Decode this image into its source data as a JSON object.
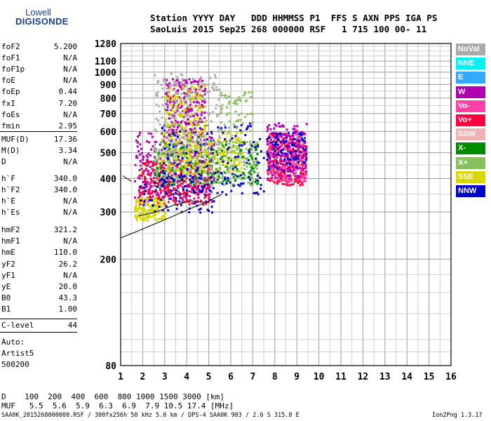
{
  "logo": {
    "line1": "Lowell",
    "line2": "DIGISONDE"
  },
  "header": {
    "line1": "Station YYYY DAY   DDD HHMMSS P1  FFS S AXN PPS IGA PS",
    "line2": "SaoLuis 2015 Sep25 268 000000 RSF   1 715 100 00- 11"
  },
  "params": [
    {
      "k": "foF2",
      "v": "5.200"
    },
    {
      "k": "foF1",
      "v": "N/A"
    },
    {
      "k": "foF1p",
      "v": "N/A"
    },
    {
      "k": "foE",
      "v": "N/A"
    },
    {
      "k": "foEp",
      "v": "0.44"
    },
    {
      "k": "fxI",
      "v": "7.20"
    },
    {
      "k": "foEs",
      "v": "N/A"
    },
    {
      "k": "fmin",
      "v": "2.95"
    },
    {
      "k": "MUF(D)",
      "v": "17.36"
    },
    {
      "k": "M(D)",
      "v": "3.34"
    },
    {
      "k": "D",
      "v": "N/A"
    },
    {
      "k": "h`F",
      "v": "340.0"
    },
    {
      "k": "h`F2",
      "v": "340.0"
    },
    {
      "k": "h`E",
      "v": "N/A"
    },
    {
      "k": "h`Es",
      "v": "N/A"
    },
    {
      "k": "hmF2",
      "v": "321.2"
    },
    {
      "k": "hmF1",
      "v": "N/A"
    },
    {
      "k": "hmE",
      "v": "110.0"
    },
    {
      "k": "yF2",
      "v": "26.2"
    },
    {
      "k": "yF1",
      "v": "N/A"
    },
    {
      "k": "yE",
      "v": "20.0"
    },
    {
      "k": "B0",
      "v": "43.3"
    },
    {
      "k": "B1",
      "v": "1.00"
    }
  ],
  "clevel": {
    "k": "C-level",
    "v": "44"
  },
  "auto": [
    "Auto:",
    "Artist5",
    "500200"
  ],
  "bottom_table": {
    "d_row": "D    100  200  400  600  800 1000 1500 3000 [km]",
    "muf_row": "MUF   5.5  5.6  5.9  6.3  6.9  7.9 10.5 17.4 [MHz]"
  },
  "footer": {
    "left": "SAA0K_2015268000000.RSF / 300fx256h 50 kHz 5.0 km / DPS-4 SAA0K 903 / 2.6 S 315.8 E",
    "right": "Ion2Png 1.3.17"
  },
  "legend": [
    {
      "label": "NoVal",
      "color": "#aaaaaa"
    },
    {
      "label": "NNE",
      "color": "#00f2f2"
    },
    {
      "label": "E",
      "color": "#33aaff"
    },
    {
      "label": "W",
      "color": "#b000b0"
    },
    {
      "label": "Vo-",
      "color": "#ff3fa8"
    },
    {
      "label": "Vo+",
      "color": "#ff0040"
    },
    {
      "label": "SSW",
      "color": "#f2b0b0"
    },
    {
      "label": "X-",
      "color": "#008a00"
    },
    {
      "label": "X+",
      "color": "#88c060"
    },
    {
      "label": "SSE",
      "color": "#d8d800"
    },
    {
      "label": "NNW",
      "color": "#0000c8"
    }
  ],
  "chart_data": {
    "type": "scatter",
    "title": "",
    "xlabel": "",
    "ylabel": "",
    "xlim": [
      1,
      16
    ],
    "ylim": [
      80,
      1280
    ],
    "x_ticks": [
      1,
      2,
      3,
      4,
      5,
      6,
      7,
      8,
      9,
      10,
      11,
      12,
      13,
      14,
      15,
      16
    ],
    "y_ticks": [
      80,
      200,
      300,
      400,
      500,
      600,
      700,
      800,
      900,
      1000,
      1100,
      1280
    ],
    "y_scale": "log",
    "grid": true,
    "clusters": [
      {
        "name": "W",
        "x0": 1.6,
        "x1": 5.2,
        "y0": 330,
        "y1": 600,
        "color": "#b000b0",
        "n": 360
      },
      {
        "name": "Vo+",
        "x0": 1.8,
        "x1": 5.0,
        "y0": 320,
        "y1": 470,
        "color": "#ff0040",
        "n": 300
      },
      {
        "name": "SSE",
        "x0": 1.6,
        "x1": 3.0,
        "y0": 280,
        "y1": 340,
        "color": "#d8d800",
        "n": 140
      },
      {
        "name": "X+",
        "x0": 2.5,
        "x1": 7.2,
        "y0": 380,
        "y1": 560,
        "color": "#88c060",
        "n": 420
      },
      {
        "name": "X-",
        "x0": 2.5,
        "x1": 7.2,
        "y0": 380,
        "y1": 560,
        "color": "#008a00",
        "n": 160
      },
      {
        "name": "SSE",
        "x0": 2.8,
        "x1": 6.5,
        "y0": 420,
        "y1": 600,
        "color": "#d8d800",
        "n": 220
      },
      {
        "name": "NNW",
        "x0": 2.8,
        "x1": 7.5,
        "y0": 350,
        "y1": 650,
        "color": "#0000c8",
        "n": 160
      },
      {
        "name": "Vo+",
        "x0": 7.6,
        "x1": 9.4,
        "y0": 380,
        "y1": 600,
        "color": "#ff0040",
        "n": 260
      },
      {
        "name": "Vo-",
        "x0": 7.6,
        "x1": 9.4,
        "y0": 390,
        "y1": 600,
        "color": "#ff3fa8",
        "n": 200
      },
      {
        "name": "W",
        "x0": 7.6,
        "x1": 9.4,
        "y0": 400,
        "y1": 650,
        "color": "#b000b0",
        "n": 180
      },
      {
        "name": "NNW",
        "x0": 7.6,
        "x1": 9.4,
        "y0": 430,
        "y1": 600,
        "color": "#0000c8",
        "n": 90
      },
      {
        "name": "W",
        "x0": 3.0,
        "x1": 4.8,
        "y0": 600,
        "y1": 950,
        "color": "#b000b0",
        "n": 220
      },
      {
        "name": "SSE",
        "x0": 3.0,
        "x1": 4.8,
        "y0": 600,
        "y1": 900,
        "color": "#d8d800",
        "n": 120
      },
      {
        "name": "NoVal",
        "x0": 2.5,
        "x1": 5.5,
        "y0": 500,
        "y1": 1000,
        "color": "#aaaaaa",
        "n": 180
      },
      {
        "name": "X+",
        "x0": 5.5,
        "x1": 7.0,
        "y0": 600,
        "y1": 850,
        "color": "#88c060",
        "n": 60
      },
      {
        "name": "NNW",
        "x0": 1.8,
        "x1": 5.2,
        "y0": 300,
        "y1": 420,
        "color": "#0000c8",
        "n": 80
      }
    ],
    "traces": [
      {
        "name": "trace1",
        "x": [
          1.0,
          1.8,
          2.6,
          3.4,
          4.2,
          5.0,
          5.6
        ],
        "y": [
          240,
          255,
          272,
          290,
          310,
          330,
          350
        ]
      },
      {
        "name": "trace2",
        "x": [
          1.8,
          2.6,
          3.4,
          4.2,
          5.0
        ],
        "y": [
          290,
          300,
          318,
          330,
          325
        ]
      },
      {
        "name": "trace3",
        "x": [
          1.1,
          1.5
        ],
        "y": [
          410,
          390
        ]
      }
    ]
  }
}
